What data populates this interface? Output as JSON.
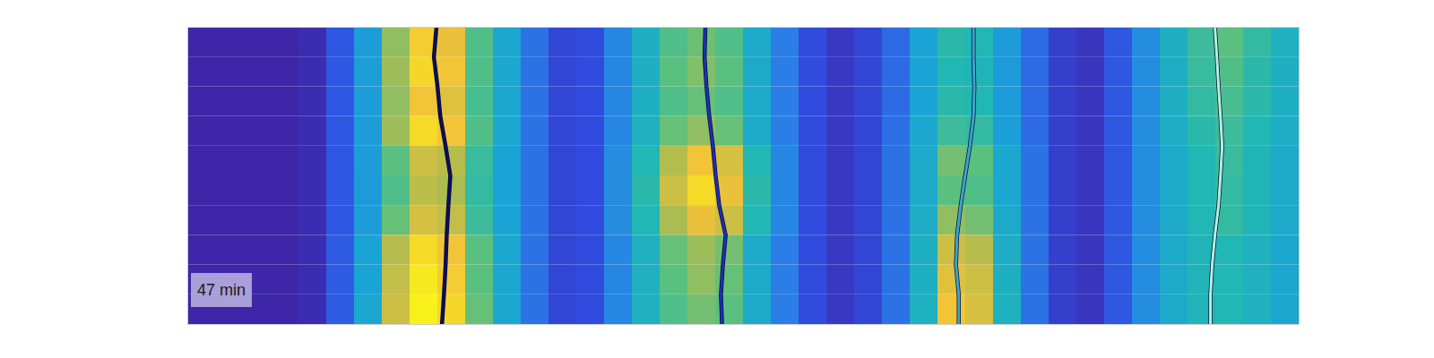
{
  "chart_data": {
    "type": "heatmap",
    "annotation": "47 min",
    "tick_labels": false,
    "xlim": [
      0,
      40
    ],
    "ylim": [
      0,
      10
    ],
    "zlim": [
      0,
      1
    ],
    "z": [
      [
        0,
        0,
        0,
        0,
        0.02,
        0.15,
        0.35,
        0.7,
        0.9,
        0.86,
        0.6,
        0.4,
        0.22,
        0.1,
        0.12,
        0.28,
        0.45,
        0.6,
        0.65,
        0.6,
        0.42,
        0.25,
        0.12,
        0.06,
        0.1,
        0.2,
        0.38,
        0.52,
        0.5,
        0.35,
        0.2,
        0.08,
        0.05,
        0.15,
        0.3,
        0.45,
        0.56,
        0.62,
        0.54,
        0.46
      ],
      [
        0,
        0,
        0,
        0,
        0.02,
        0.15,
        0.36,
        0.72,
        0.92,
        0.88,
        0.6,
        0.4,
        0.22,
        0.1,
        0.12,
        0.28,
        0.45,
        0.62,
        0.68,
        0.62,
        0.42,
        0.25,
        0.12,
        0.06,
        0.1,
        0.2,
        0.38,
        0.5,
        0.48,
        0.34,
        0.2,
        0.08,
        0.05,
        0.15,
        0.3,
        0.44,
        0.55,
        0.6,
        0.52,
        0.45
      ],
      [
        0,
        0,
        0,
        0,
        0.02,
        0.15,
        0.35,
        0.7,
        0.88,
        0.84,
        0.58,
        0.4,
        0.22,
        0.1,
        0.12,
        0.28,
        0.45,
        0.6,
        0.64,
        0.6,
        0.42,
        0.25,
        0.12,
        0.06,
        0.1,
        0.2,
        0.38,
        0.52,
        0.5,
        0.35,
        0.2,
        0.08,
        0.05,
        0.15,
        0.3,
        0.45,
        0.54,
        0.58,
        0.52,
        0.45
      ],
      [
        0,
        0,
        0,
        0,
        0.02,
        0.15,
        0.35,
        0.72,
        0.93,
        0.88,
        0.6,
        0.4,
        0.22,
        0.1,
        0.12,
        0.28,
        0.46,
        0.64,
        0.7,
        0.64,
        0.42,
        0.25,
        0.12,
        0.06,
        0.1,
        0.21,
        0.4,
        0.56,
        0.54,
        0.36,
        0.2,
        0.08,
        0.05,
        0.15,
        0.3,
        0.44,
        0.52,
        0.56,
        0.5,
        0.44
      ],
      [
        0,
        0,
        0,
        0,
        0.02,
        0.15,
        0.35,
        0.62,
        0.8,
        0.76,
        0.55,
        0.38,
        0.22,
        0.1,
        0.12,
        0.3,
        0.5,
        0.75,
        0.88,
        0.82,
        0.5,
        0.28,
        0.12,
        0.06,
        0.1,
        0.22,
        0.42,
        0.66,
        0.62,
        0.4,
        0.22,
        0.08,
        0.05,
        0.15,
        0.3,
        0.42,
        0.5,
        0.55,
        0.48,
        0.42
      ],
      [
        0,
        0,
        0,
        0,
        0.02,
        0.15,
        0.34,
        0.6,
        0.77,
        0.74,
        0.54,
        0.38,
        0.22,
        0.1,
        0.12,
        0.3,
        0.52,
        0.8,
        0.93,
        0.86,
        0.52,
        0.28,
        0.12,
        0.06,
        0.1,
        0.22,
        0.42,
        0.62,
        0.6,
        0.4,
        0.22,
        0.08,
        0.05,
        0.15,
        0.3,
        0.42,
        0.5,
        0.54,
        0.48,
        0.42
      ],
      [
        0,
        0,
        0,
        0,
        0.02,
        0.15,
        0.35,
        0.64,
        0.82,
        0.78,
        0.56,
        0.38,
        0.22,
        0.1,
        0.12,
        0.3,
        0.5,
        0.74,
        0.86,
        0.8,
        0.5,
        0.28,
        0.12,
        0.06,
        0.1,
        0.22,
        0.44,
        0.7,
        0.66,
        0.42,
        0.22,
        0.08,
        0.05,
        0.15,
        0.3,
        0.42,
        0.5,
        0.54,
        0.48,
        0.42
      ],
      [
        0,
        0,
        0,
        0,
        0.02,
        0.16,
        0.38,
        0.76,
        0.93,
        0.88,
        0.62,
        0.4,
        0.22,
        0.1,
        0.12,
        0.28,
        0.46,
        0.64,
        0.72,
        0.66,
        0.42,
        0.25,
        0.12,
        0.06,
        0.1,
        0.22,
        0.45,
        0.8,
        0.76,
        0.44,
        0.22,
        0.08,
        0.05,
        0.15,
        0.3,
        0.42,
        0.48,
        0.5,
        0.46,
        0.4
      ],
      [
        0,
        0,
        0,
        0,
        0.02,
        0.16,
        0.38,
        0.78,
        0.96,
        0.9,
        0.62,
        0.4,
        0.22,
        0.1,
        0.12,
        0.28,
        0.46,
        0.62,
        0.7,
        0.64,
        0.42,
        0.25,
        0.12,
        0.06,
        0.1,
        0.22,
        0.45,
        0.84,
        0.8,
        0.45,
        0.22,
        0.08,
        0.05,
        0.15,
        0.3,
        0.42,
        0.48,
        0.5,
        0.46,
        0.4
      ],
      [
        0,
        0,
        0,
        0,
        0.02,
        0.16,
        0.4,
        0.8,
        0.98,
        0.92,
        0.64,
        0.4,
        0.22,
        0.1,
        0.12,
        0.28,
        0.46,
        0.6,
        0.66,
        0.62,
        0.42,
        0.25,
        0.12,
        0.06,
        0.1,
        0.22,
        0.46,
        0.88,
        0.82,
        0.46,
        0.22,
        0.08,
        0.05,
        0.15,
        0.3,
        0.42,
        0.48,
        0.5,
        0.46,
        0.4
      ]
    ],
    "series": [
      {
        "color": "#0d0d5e",
        "x": [
          8.95,
          8.86,
          8.99,
          9.09,
          9.28,
          9.45,
          9.38,
          9.32,
          9.28,
          9.22,
          9.15
        ],
        "y": [
          0,
          1,
          2,
          3,
          4,
          5,
          6,
          7,
          8,
          9,
          10
        ]
      },
      {
        "color": "#1a2fb8",
        "x": [
          18.63,
          18.6,
          18.67,
          18.77,
          18.9,
          19.0,
          19.13,
          19.36,
          19.26,
          19.19,
          19.23
        ],
        "y": [
          0,
          1,
          2,
          3,
          4,
          5,
          6,
          7,
          8,
          9,
          10
        ]
      },
      {
        "color": "#3aa6cf",
        "x": [
          28.28,
          28.28,
          28.31,
          28.28,
          28.15,
          27.98,
          27.82,
          27.69,
          27.65,
          27.75,
          27.75
        ],
        "y": [
          0,
          1,
          2,
          3,
          4,
          5,
          6,
          7,
          8,
          9,
          10
        ]
      },
      {
        "color": "#b0f3e2",
        "x": [
          36.97,
          37.04,
          37.1,
          37.17,
          37.23,
          37.17,
          37.1,
          36.97,
          36.87,
          36.81,
          36.81
        ],
        "y": [
          0,
          1,
          2,
          3,
          4,
          5,
          6,
          7,
          8,
          9,
          10
        ]
      }
    ]
  }
}
